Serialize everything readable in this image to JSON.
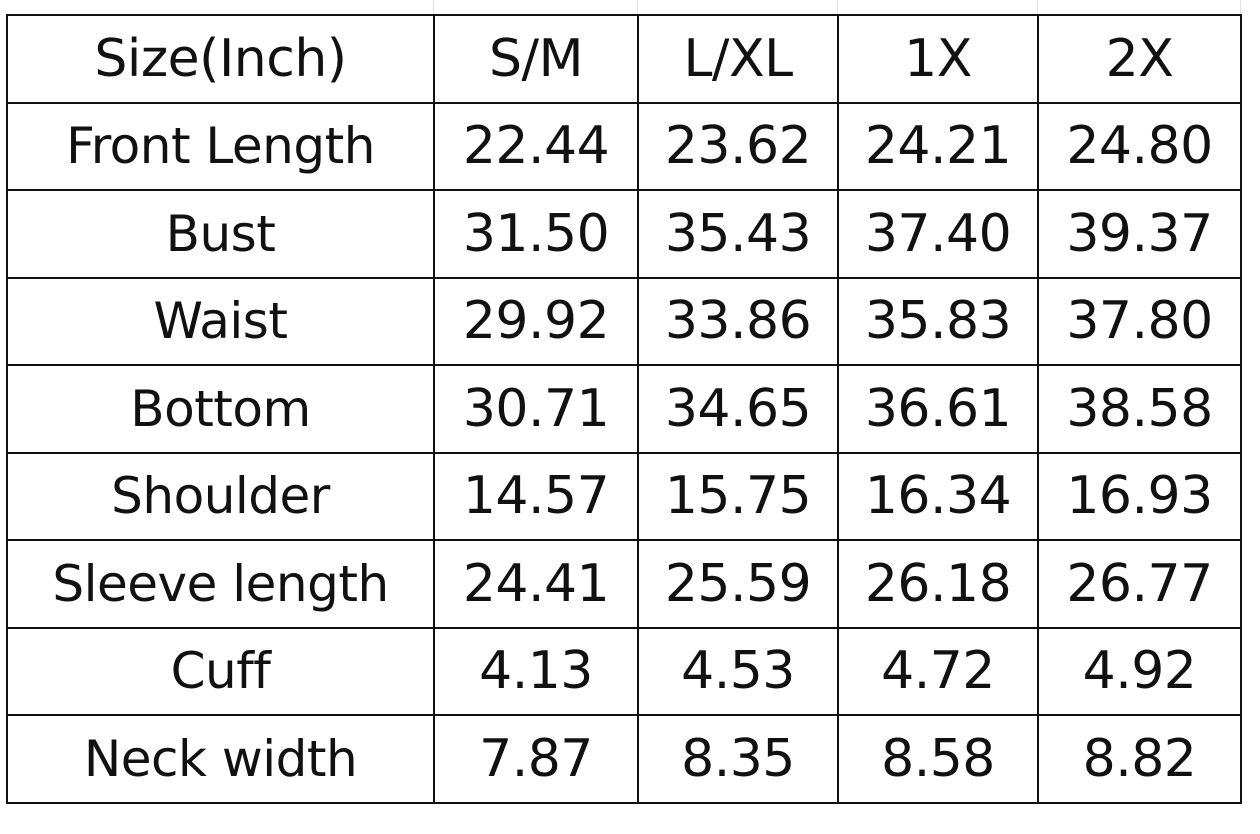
{
  "table": {
    "headers": [
      "Size(Inch)",
      "S/M",
      "L/XL",
      "1X",
      "2X"
    ],
    "rows": [
      [
        "Front Length",
        "22.44",
        "23.62",
        "24.21",
        "24.80"
      ],
      [
        "Bust",
        "31.50",
        "35.43",
        "37.40",
        "39.37"
      ],
      [
        "Waist",
        "29.92",
        "33.86",
        "35.83",
        "37.80"
      ],
      [
        "Bottom",
        "30.71",
        "34.65",
        "36.61",
        "38.58"
      ],
      [
        "Shoulder",
        "14.57",
        "15.75",
        "16.34",
        "16.93"
      ],
      [
        "Sleeve length",
        "24.41",
        "25.59",
        "26.18",
        "26.77"
      ],
      [
        "Cuff",
        "4.13",
        "4.53",
        "4.72",
        "4.92"
      ],
      [
        "Neck width",
        "7.87",
        "8.35",
        "8.58",
        "8.82"
      ]
    ]
  }
}
